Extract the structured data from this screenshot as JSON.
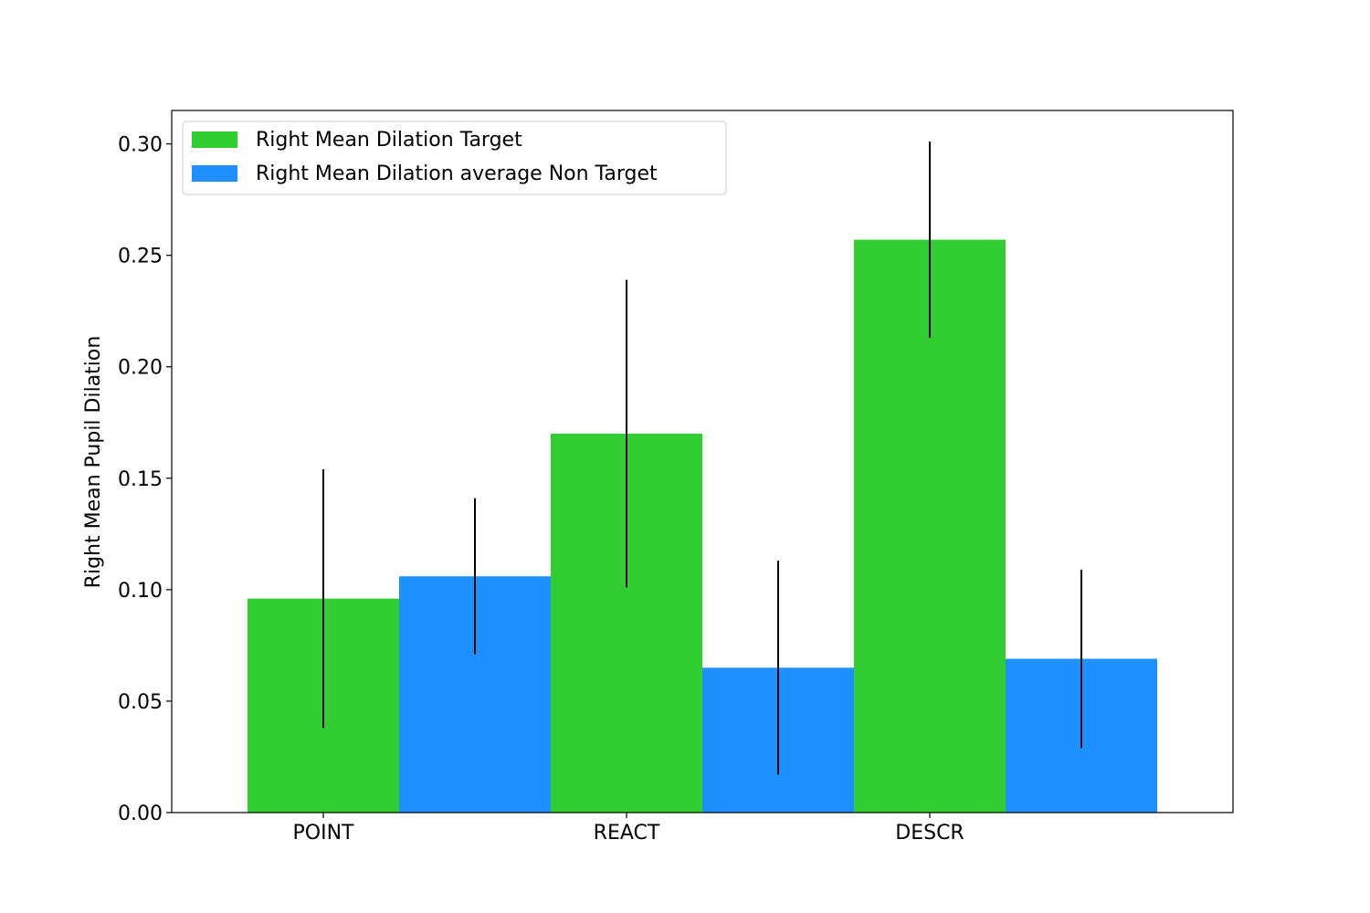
{
  "chart_data": {
    "type": "bar",
    "title": "",
    "xlabel": "",
    "ylabel": "Right Mean Pupil Dilation",
    "categories": [
      "POINT",
      "REACT",
      "DESCR"
    ],
    "series": [
      {
        "name": "Right Mean Dilation Target",
        "color": "#32cd32",
        "values": [
          0.096,
          0.17,
          0.257
        ],
        "error": [
          0.058,
          0.069,
          0.044
        ]
      },
      {
        "name": "Right Mean Dilation average Non Target",
        "color": "#1e90ff",
        "values": [
          0.106,
          0.065,
          0.069
        ],
        "error": [
          0.035,
          0.048,
          0.04
        ]
      }
    ],
    "ylim": [
      0,
      0.315
    ],
    "yticks": [
      "0.00",
      "0.05",
      "0.10",
      "0.15",
      "0.20",
      "0.25",
      "0.30"
    ],
    "grid": false,
    "legend_position": "top-left",
    "error_bar_color": "#000000"
  }
}
